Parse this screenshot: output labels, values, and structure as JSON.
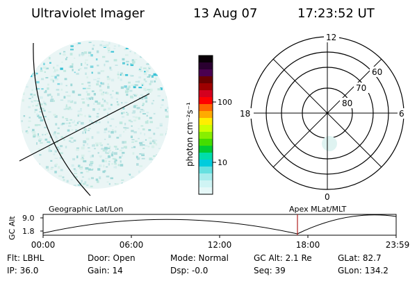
{
  "header": {
    "instrument": "Ultraviolet Imager",
    "date": "13 Aug 07",
    "time": "17:23:52 UT"
  },
  "colorbar": {
    "unit_label": "photon cm⁻²s⁻¹",
    "tick_high": "100",
    "tick_low": "10",
    "colors": [
      "#0a0008",
      "#2a0030",
      "#4a0050",
      "#6a0000",
      "#9e0000",
      "#d4001e",
      "#ff0000",
      "#ff6600",
      "#ffaa00",
      "#ffee00",
      "#ccff00",
      "#88ee00",
      "#44dd00",
      "#00cc33",
      "#00ddaa",
      "#00ccdd",
      "#66e0e0",
      "#a8ecec",
      "#cff4f4",
      "#e6f8f8"
    ]
  },
  "polar": {
    "mlt_top": "12",
    "mlt_left": "18",
    "mlt_right": "6",
    "mlt_bottom": "0",
    "lat_60": "60",
    "lat_70": "70",
    "lat_80": "80"
  },
  "timeline": {
    "left_label": "Geographic Lat/Lon",
    "right_label": "Apex  MLat/MLT",
    "axis_title": "GC Alt",
    "y_high": "9.0",
    "y_low": "1.8",
    "ticks": [
      "00:00",
      "06:00",
      "12:00",
      "18:00",
      "23:59"
    ],
    "marker_color": "#b02020"
  },
  "status": {
    "filter": "Flt: LBHL",
    "door": "Door: Open",
    "mode": "Mode: Normal",
    "gc_alt": "GC Alt: 2.1 Re",
    "glat": "GLat:  82.7",
    "ip": "IP: 36.0",
    "gain": "Gain: 14",
    "dsp": "Dsp:     -0.0",
    "seq": "Seq: 39",
    "glon": "GLon: 134.2"
  }
}
